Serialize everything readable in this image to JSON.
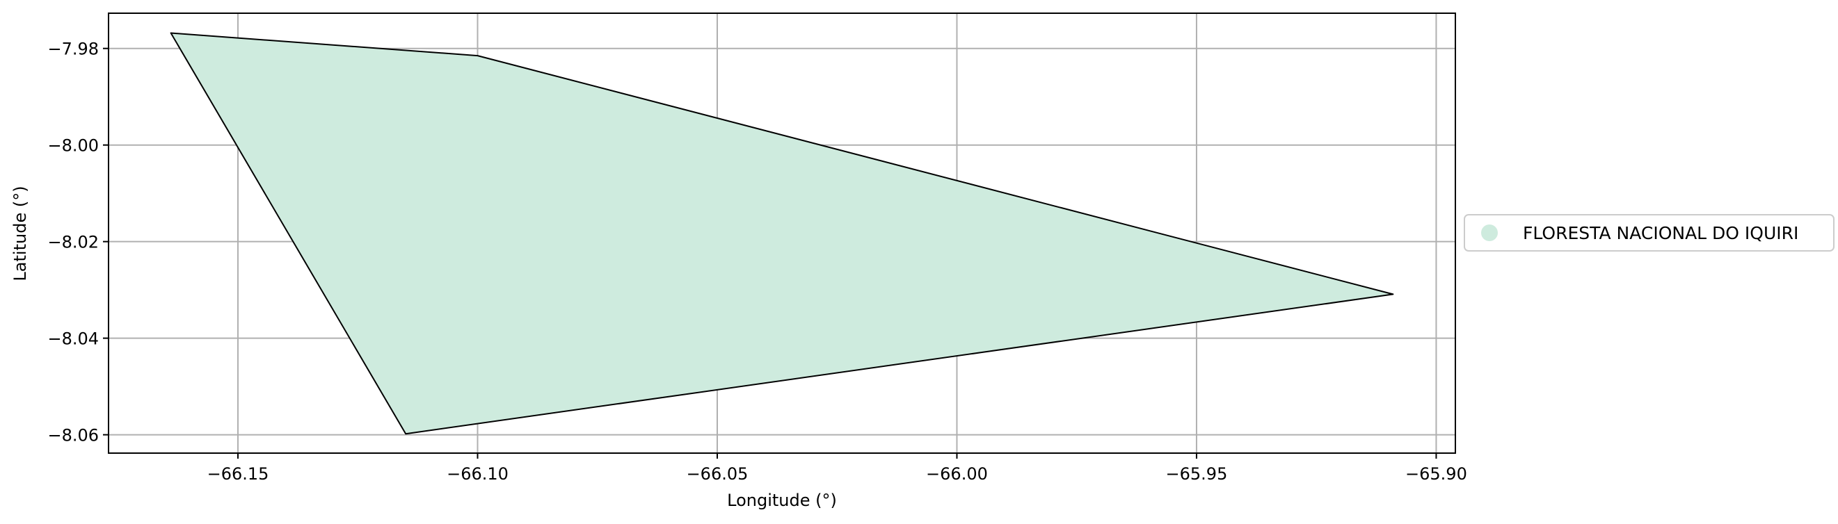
{
  "chart_data": {
    "type": "area",
    "xlabel": "Longitude (°)",
    "ylabel": "Latitude (°)",
    "xlim": [
      -66.177,
      -65.896
    ],
    "ylim": [
      -8.0638,
      -7.9727
    ],
    "xticks": [
      -66.15,
      -66.1,
      -66.05,
      -66.0,
      -65.95,
      -65.9
    ],
    "xtick_labels": [
      "−66.15",
      "−66.10",
      "−66.05",
      "−66.00",
      "−65.95",
      "−65.90"
    ],
    "yticks": [
      -7.98,
      -8.0,
      -8.02,
      -8.04,
      -8.06
    ],
    "ytick_labels": [
      "−7.98",
      "−8.00",
      "−8.02",
      "−8.04",
      "−8.06"
    ],
    "grid": true,
    "legend_position": "right",
    "series": [
      {
        "name": "FLORESTA NACIONAL DO IQUIRI",
        "fill_color": "#ceebde",
        "edge_color": "#000000",
        "polygon": [
          [
            -66.164,
            -7.9768
          ],
          [
            -66.1,
            -7.9815
          ],
          [
            -65.909,
            -8.0309
          ],
          [
            -66.115,
            -8.0598
          ]
        ]
      }
    ]
  }
}
